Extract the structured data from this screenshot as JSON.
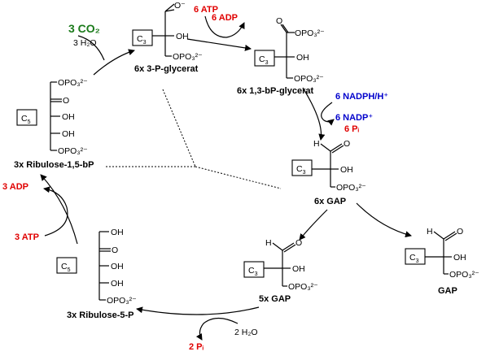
{
  "molecules": {
    "pga": {
      "label": "6x  3-P-glycerat",
      "box": "C3",
      "groups": [
        "O⁻",
        "OH",
        "OPO₃²⁻"
      ]
    },
    "bpg": {
      "label": "6x  1,3-bP-glycerat",
      "box": "C3",
      "groups": [
        "OPO₃²⁻",
        "OH",
        "OPO₃²⁻"
      ]
    },
    "gap6": {
      "label": "6x   GAP",
      "box": "C3",
      "groups": [
        "H",
        "O",
        "OH",
        "OPO₃²⁻"
      ]
    },
    "gap5": {
      "label": "5x   GAP",
      "box": "C3",
      "groups": [
        "H",
        "O",
        "OH",
        "OPO₃²⁻"
      ]
    },
    "gap1": {
      "label": "GAP",
      "box": "C3",
      "groups": [
        "H",
        "O",
        "OH",
        "OPO₃²⁻"
      ]
    },
    "rubp": {
      "label": "3x  Ribulose-1,5-bP",
      "box": "C5",
      "groups": [
        "OPO₃²⁻",
        "O",
        "OH",
        "OH",
        "OPO₃²⁻"
      ]
    },
    "ru5p": {
      "label": "3x  Ribulose-5-P",
      "box": "C5",
      "groups": [
        "OH",
        "O",
        "OH",
        "OH",
        "OPO₃²⁻"
      ]
    }
  },
  "reagents": {
    "co2": "3 CO₂",
    "h2o_in": "3 H₂O",
    "atp6": "6 ATP",
    "adp6": "6 ADP",
    "nadph": "6 NADPH/H⁺",
    "nadp": "6 NADP⁺",
    "pi6": "6 Pᵢ",
    "adp3": "3 ADP",
    "atp3": "3 ATP",
    "h2o_2": "2 H₂O",
    "pi2": "2 Pᵢ"
  },
  "colors": {
    "red": "#e00000",
    "blue": "#0000cc",
    "green": "#1a7a1a"
  }
}
